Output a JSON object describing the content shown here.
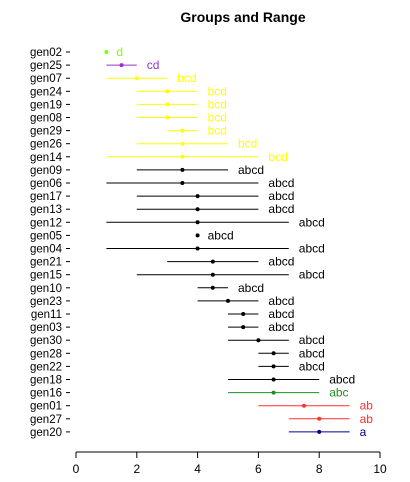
{
  "chart_data": {
    "type": "interval",
    "title": "Groups and Range",
    "xlabel": "",
    "ylabel": "",
    "xlim": [
      0,
      10
    ],
    "x_ticks": [
      0,
      2,
      4,
      6,
      8,
      10
    ],
    "grid": false,
    "legend": "none",
    "colors": {
      "d": "#7fff00",
      "cd": "#9932cc",
      "bcd": "#ffff00",
      "abcd": "#000000",
      "abc": "#228b22",
      "ab": "#ff3030",
      "a": "#00008b"
    },
    "rows": [
      {
        "label": "gen02",
        "mean": 1.0,
        "low": 1.0,
        "high": 1.0,
        "group": "d"
      },
      {
        "label": "gen25",
        "mean": 1.5,
        "low": 1.0,
        "high": 2.0,
        "group": "cd"
      },
      {
        "label": "gen07",
        "mean": 2.0,
        "low": 1.0,
        "high": 3.0,
        "group": "bcd"
      },
      {
        "label": "gen24",
        "mean": 3.0,
        "low": 2.0,
        "high": 4.0,
        "group": "bcd"
      },
      {
        "label": "gen19",
        "mean": 3.0,
        "low": 2.0,
        "high": 4.0,
        "group": "bcd"
      },
      {
        "label": "gen08",
        "mean": 3.0,
        "low": 2.0,
        "high": 4.0,
        "group": "bcd"
      },
      {
        "label": "gen29",
        "mean": 3.5,
        "low": 3.0,
        "high": 4.0,
        "group": "bcd"
      },
      {
        "label": "gen26",
        "mean": 3.5,
        "low": 2.0,
        "high": 5.0,
        "group": "bcd"
      },
      {
        "label": "gen14",
        "mean": 3.5,
        "low": 1.0,
        "high": 6.0,
        "group": "bcd"
      },
      {
        "label": "gen09",
        "mean": 3.5,
        "low": 2.0,
        "high": 5.0,
        "group": "abcd"
      },
      {
        "label": "gen06",
        "mean": 3.5,
        "low": 1.0,
        "high": 6.0,
        "group": "abcd"
      },
      {
        "label": "gen17",
        "mean": 4.0,
        "low": 2.0,
        "high": 6.0,
        "group": "abcd"
      },
      {
        "label": "gen13",
        "mean": 4.0,
        "low": 2.0,
        "high": 6.0,
        "group": "abcd"
      },
      {
        "label": "gen12",
        "mean": 4.0,
        "low": 1.0,
        "high": 7.0,
        "group": "abcd"
      },
      {
        "label": "gen05",
        "mean": 4.0,
        "low": 4.0,
        "high": 4.0,
        "group": "abcd"
      },
      {
        "label": "gen04",
        "mean": 4.0,
        "low": 1.0,
        "high": 7.0,
        "group": "abcd"
      },
      {
        "label": "gen21",
        "mean": 4.5,
        "low": 3.0,
        "high": 6.0,
        "group": "abcd"
      },
      {
        "label": "gen15",
        "mean": 4.5,
        "low": 2.0,
        "high": 7.0,
        "group": "abcd"
      },
      {
        "label": "gen10",
        "mean": 4.5,
        "low": 4.0,
        "high": 5.0,
        "group": "abcd"
      },
      {
        "label": "gen23",
        "mean": 5.0,
        "low": 4.0,
        "high": 6.0,
        "group": "abcd"
      },
      {
        "label": "gen11",
        "mean": 5.5,
        "low": 5.0,
        "high": 6.0,
        "group": "abcd"
      },
      {
        "label": "gen03",
        "mean": 5.5,
        "low": 5.0,
        "high": 6.0,
        "group": "abcd"
      },
      {
        "label": "gen30",
        "mean": 6.0,
        "low": 5.0,
        "high": 7.0,
        "group": "abcd"
      },
      {
        "label": "gen28",
        "mean": 6.5,
        "low": 6.0,
        "high": 7.0,
        "group": "abcd"
      },
      {
        "label": "gen22",
        "mean": 6.5,
        "low": 6.0,
        "high": 7.0,
        "group": "abcd"
      },
      {
        "label": "gen18",
        "mean": 6.5,
        "low": 5.0,
        "high": 8.0,
        "group": "abcd"
      },
      {
        "label": "gen16",
        "mean": 6.5,
        "low": 5.0,
        "high": 8.0,
        "group": "abc"
      },
      {
        "label": "gen01",
        "mean": 7.5,
        "low": 6.0,
        "high": 9.0,
        "group": "ab"
      },
      {
        "label": "gen27",
        "mean": 8.0,
        "low": 7.0,
        "high": 9.0,
        "group": "ab"
      },
      {
        "label": "gen20",
        "mean": 8.0,
        "low": 7.0,
        "high": 9.0,
        "group": "a"
      }
    ]
  }
}
